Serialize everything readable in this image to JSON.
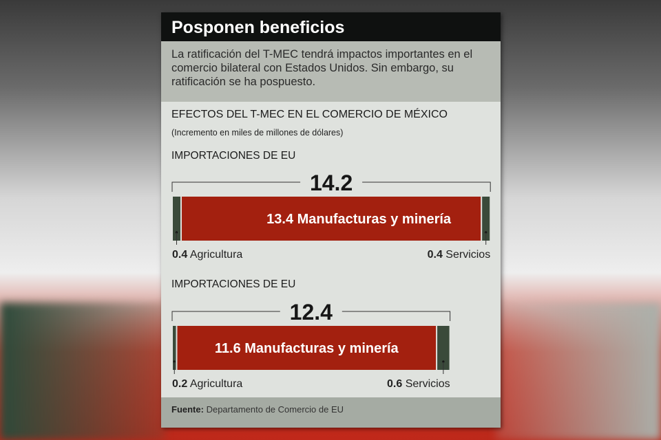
{
  "title": "Posponen beneficios",
  "intro": "La ratificación del T-MEC tendrá impactos importantes en el comercio bilateral con Estados Unidos. Sin embargo, su ratificación se ha pospuesto.",
  "heading": "EFECTOS DEL T-MEC EN EL COMERCIO DE MÉXICO",
  "subheading": "(Incremento en miles de millones de dólares)",
  "footer": {
    "label": "Fuente:",
    "text": "Departamento de Comercio de EU"
  },
  "colors": {
    "manufacturas": "#a3200f",
    "small": "#3a4a3a",
    "title_bg": "#0f1110"
  },
  "chart_data": [
    {
      "type": "bar",
      "orientation": "horizontal-stacked",
      "title": "IMPORTACIONES DE EU",
      "total": "14.2",
      "segments": [
        {
          "name": "Agricultura",
          "value": 0.4,
          "label": "0.4"
        },
        {
          "name": "Manufacturas y minería",
          "value": 13.4,
          "label": "13.4"
        },
        {
          "name": "Servicios",
          "value": 0.4,
          "label": "0.4"
        }
      ]
    },
    {
      "type": "bar",
      "orientation": "horizontal-stacked",
      "title": "IMPORTACIONES DE EU",
      "total": "12.4",
      "segments": [
        {
          "name": "Agricultura",
          "value": 0.2,
          "label": "0.2"
        },
        {
          "name": "Manufacturas y minería",
          "value": 11.6,
          "label": "11.6"
        },
        {
          "name": "Servicios",
          "value": 0.6,
          "label": "0.6"
        }
      ]
    }
  ]
}
